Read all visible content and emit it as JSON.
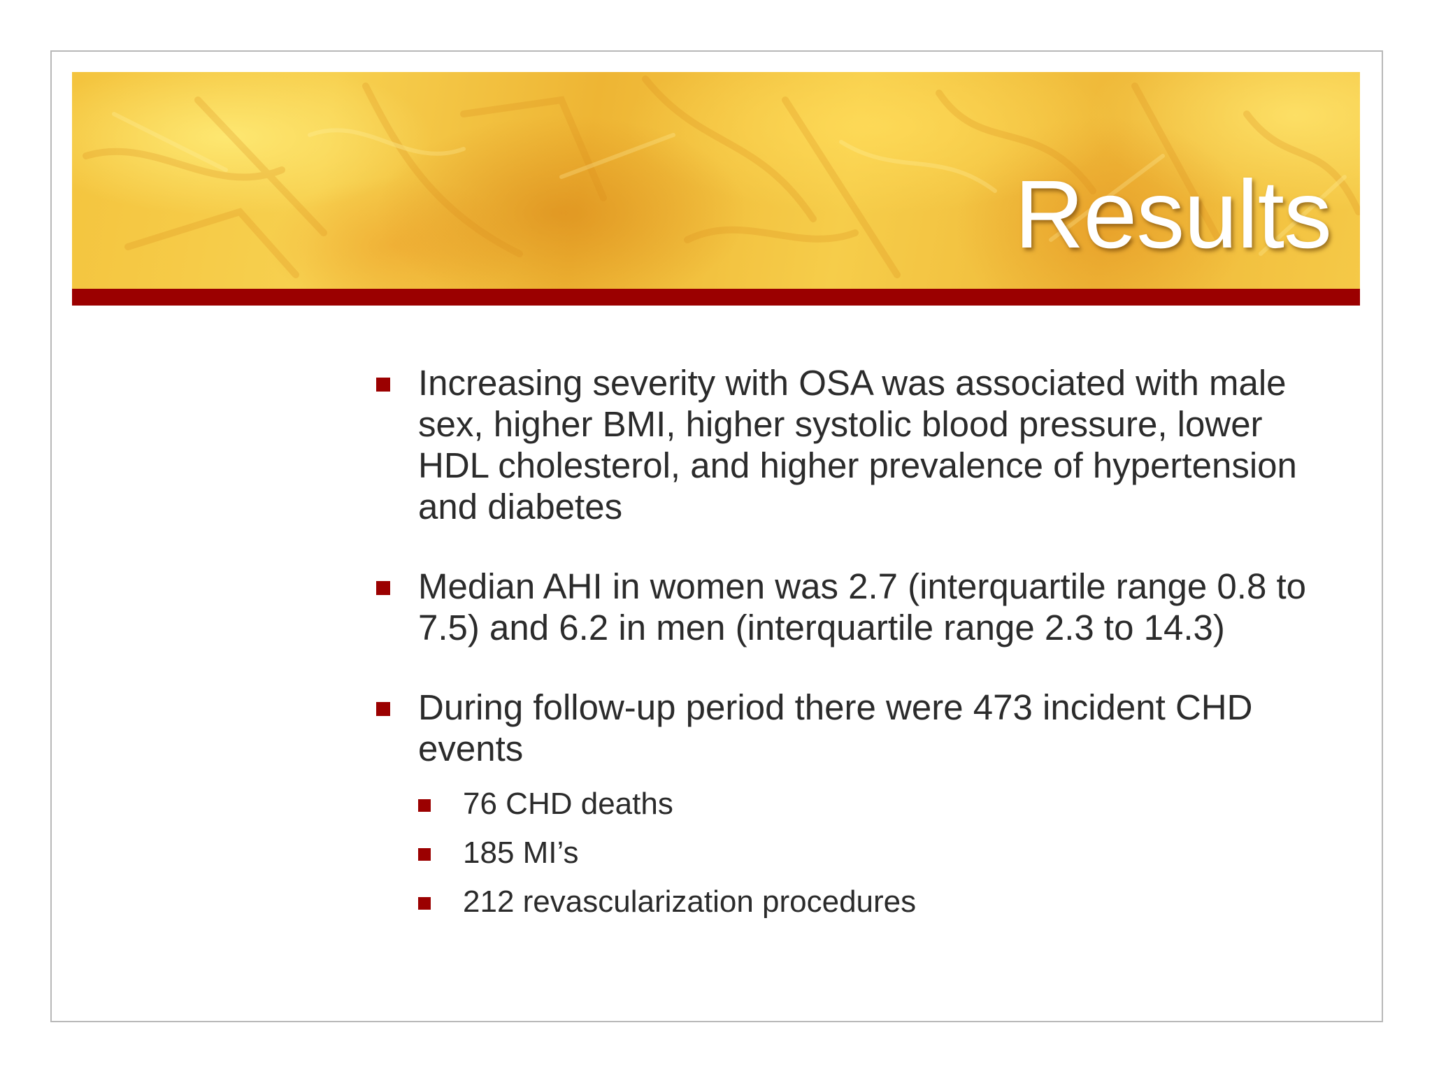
{
  "slide": {
    "title": "Results",
    "accent_color": "#9b0000",
    "banner_colors": [
      "#f4c43e",
      "#eeb534",
      "#f7d04f"
    ],
    "bullets": [
      {
        "text": "Increasing severity with OSA was associated with male sex, higher BMI, higher systolic blood pressure, lower HDL cholesterol, and higher prevalence of hypertension and diabetes"
      },
      {
        "text": "Median AHI in women was 2.7 (interquartile range 0.8 to 7.5) and 6.2 in men (interquartile range 2.3 to 14.3)"
      },
      {
        "text": "During follow-up period there were 473 incident CHD events",
        "sub_bullets": [
          "76 CHD deaths",
          "185 MI’s",
          "212 revascularization procedures"
        ]
      }
    ]
  }
}
